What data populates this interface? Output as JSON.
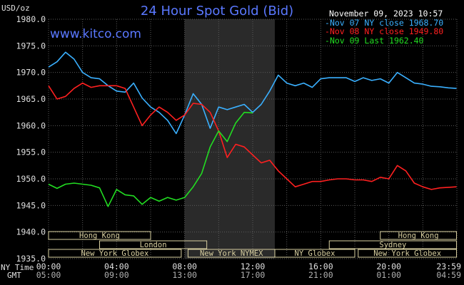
{
  "chart_data": {
    "type": "line",
    "title": "24 Hour Spot Gold (Bid)",
    "website": "www.kitco.com",
    "timestamp": "November 09, 2023 10:57",
    "unit_label": "USD/oz",
    "ylim": [
      1935,
      1980
    ],
    "y_ticks": [
      "1980.0",
      "1975.0",
      "1970.0",
      "1965.0",
      "1960.0",
      "1955.0",
      "1950.0",
      "1945.0",
      "1940.0",
      "1935.0"
    ],
    "y_tick_values": [
      1980,
      1975,
      1970,
      1965,
      1960,
      1955,
      1950,
      1945,
      1940,
      1935
    ],
    "xlim": [
      0,
      24
    ],
    "x_ticks_ny": [
      "00:00",
      "04:00",
      "08:00",
      "12:00",
      "16:00",
      "20:00",
      "23:59"
    ],
    "x_ticks_gmt": [
      "05:00",
      "09:00",
      "13:00",
      "17:00",
      "21:00",
      "01:00",
      "04:59"
    ],
    "x_tick_hours": [
      0,
      4,
      8,
      12,
      16,
      20,
      23.98
    ],
    "x_label_ny": "NY Time",
    "x_label_gmt": "GMT",
    "shaded_range": [
      8,
      13.3
    ],
    "grid": true,
    "legend_position": "top-right",
    "legend": [
      {
        "label": "Nov 07 NY close 1968.70",
        "color": "#3ab0ff"
      },
      {
        "label": "Nov 08 NY close 1949.80",
        "color": "#ff2020"
      },
      {
        "label": "Nov 09 Last 1962.40",
        "color": "#22dd22"
      }
    ],
    "series": [
      {
        "name": "Nov 07",
        "color": "#3ab0ff",
        "x": [
          0,
          0.5,
          1,
          1.5,
          2,
          2.5,
          3,
          3.5,
          4,
          4.5,
          5,
          5.5,
          6,
          6.5,
          7,
          7.5,
          8,
          8.5,
          9,
          9.5,
          10,
          10.5,
          11,
          11.5,
          12,
          12.5,
          13,
          13.5,
          14,
          14.5,
          15,
          15.5,
          16,
          16.5,
          17,
          17.5,
          18,
          18.5,
          19,
          19.5,
          20,
          20.5,
          21,
          21.5,
          22,
          22.5,
          23,
          23.5,
          23.98
        ],
        "y": [
          1971,
          1972,
          1973.8,
          1972.5,
          1970,
          1969,
          1968.8,
          1967.5,
          1966.5,
          1966.3,
          1968,
          1965.2,
          1963.5,
          1962.5,
          1961,
          1958.5,
          1962,
          1966,
          1964,
          1959.5,
          1963.5,
          1963,
          1963.5,
          1964,
          1962.5,
          1964,
          1966.5,
          1969.5,
          1968,
          1967.5,
          1968,
          1967.2,
          1968.8,
          1969,
          1969,
          1969,
          1968.3,
          1969,
          1968.5,
          1968.8,
          1968,
          1970,
          1969,
          1968,
          1967.8,
          1967.4,
          1967.3,
          1967.1,
          1967
        ]
      },
      {
        "name": "Nov 08",
        "color": "#ff2020",
        "x": [
          0,
          0.5,
          1,
          1.5,
          2,
          2.5,
          3,
          3.5,
          4,
          4.5,
          5,
          5.5,
          6,
          6.5,
          7,
          7.5,
          8,
          8.5,
          9,
          9.5,
          10,
          10.5,
          11,
          11.5,
          12,
          12.5,
          13,
          13.5,
          14,
          14.5,
          15,
          15.5,
          16,
          16.5,
          17,
          17.5,
          18,
          18.5,
          19,
          19.5,
          20,
          20.5,
          21,
          21.5,
          22,
          22.5,
          23,
          23.5,
          23.98
        ],
        "y": [
          1967.5,
          1965,
          1965.5,
          1967,
          1968,
          1967.2,
          1967.5,
          1967.5,
          1967.5,
          1967,
          1963.5,
          1960,
          1962,
          1963.5,
          1962.5,
          1961,
          1962,
          1964.2,
          1964,
          1962.5,
          1959,
          1954,
          1956.5,
          1956,
          1954.5,
          1953,
          1953.5,
          1951.5,
          1950,
          1948.5,
          1949,
          1949.5,
          1949.5,
          1949.8,
          1950,
          1950,
          1949.8,
          1949.8,
          1949.5,
          1950.3,
          1950,
          1952.5,
          1951.5,
          1949.2,
          1948.5,
          1948,
          1948.3,
          1948.4,
          1948.5
        ]
      },
      {
        "name": "Nov 09",
        "color": "#22dd22",
        "x": [
          0,
          0.5,
          1,
          1.5,
          2,
          2.5,
          3,
          3.5,
          4,
          4.5,
          5,
          5.5,
          6,
          6.5,
          7,
          7.5,
          8,
          8.5,
          9,
          9.5,
          10,
          10.5,
          11,
          11.5,
          12
        ],
        "y": [
          1949,
          1948.2,
          1949,
          1949.2,
          1949,
          1948.8,
          1948.3,
          1944.8,
          1948,
          1947,
          1946.8,
          1945.2,
          1946.5,
          1945.8,
          1946.5,
          1946,
          1946.5,
          1948.5,
          1951,
          1956,
          1959,
          1957,
          1960.5,
          1962.5,
          1962.4
        ]
      }
    ]
  },
  "sessions": {
    "rows": [
      [
        {
          "label": "Hong Kong",
          "start": 0,
          "end": 6
        },
        {
          "label": "Hong Kong",
          "start": 19.5,
          "end": 23.98
        }
      ],
      [
        {
          "label": "London",
          "start": 3,
          "end": 9.3
        },
        {
          "label": "Sydney",
          "start": 16.5,
          "end": 23.98
        }
      ],
      [
        {
          "label": "New York Globex",
          "start": 0,
          "end": 7.8
        },
        {
          "label": "New York NYMEX",
          "start": 8.2,
          "end": 13.3
        },
        {
          "label": "NY Globex",
          "start": 13.3,
          "end": 18
        },
        {
          "label": "New York Globex",
          "start": 18.2,
          "end": 23.98
        }
      ]
    ]
  },
  "colors": {
    "background": "#000000",
    "grid": "#5a5a5a",
    "shade": "#2a2a2a",
    "title": "#5a78ff",
    "website": "#5a78ff",
    "axis_text": "#e0e0e0",
    "session_text": "#d8cfa0",
    "session_border": "#d8cfa0",
    "timestamp": "#ffffff"
  }
}
